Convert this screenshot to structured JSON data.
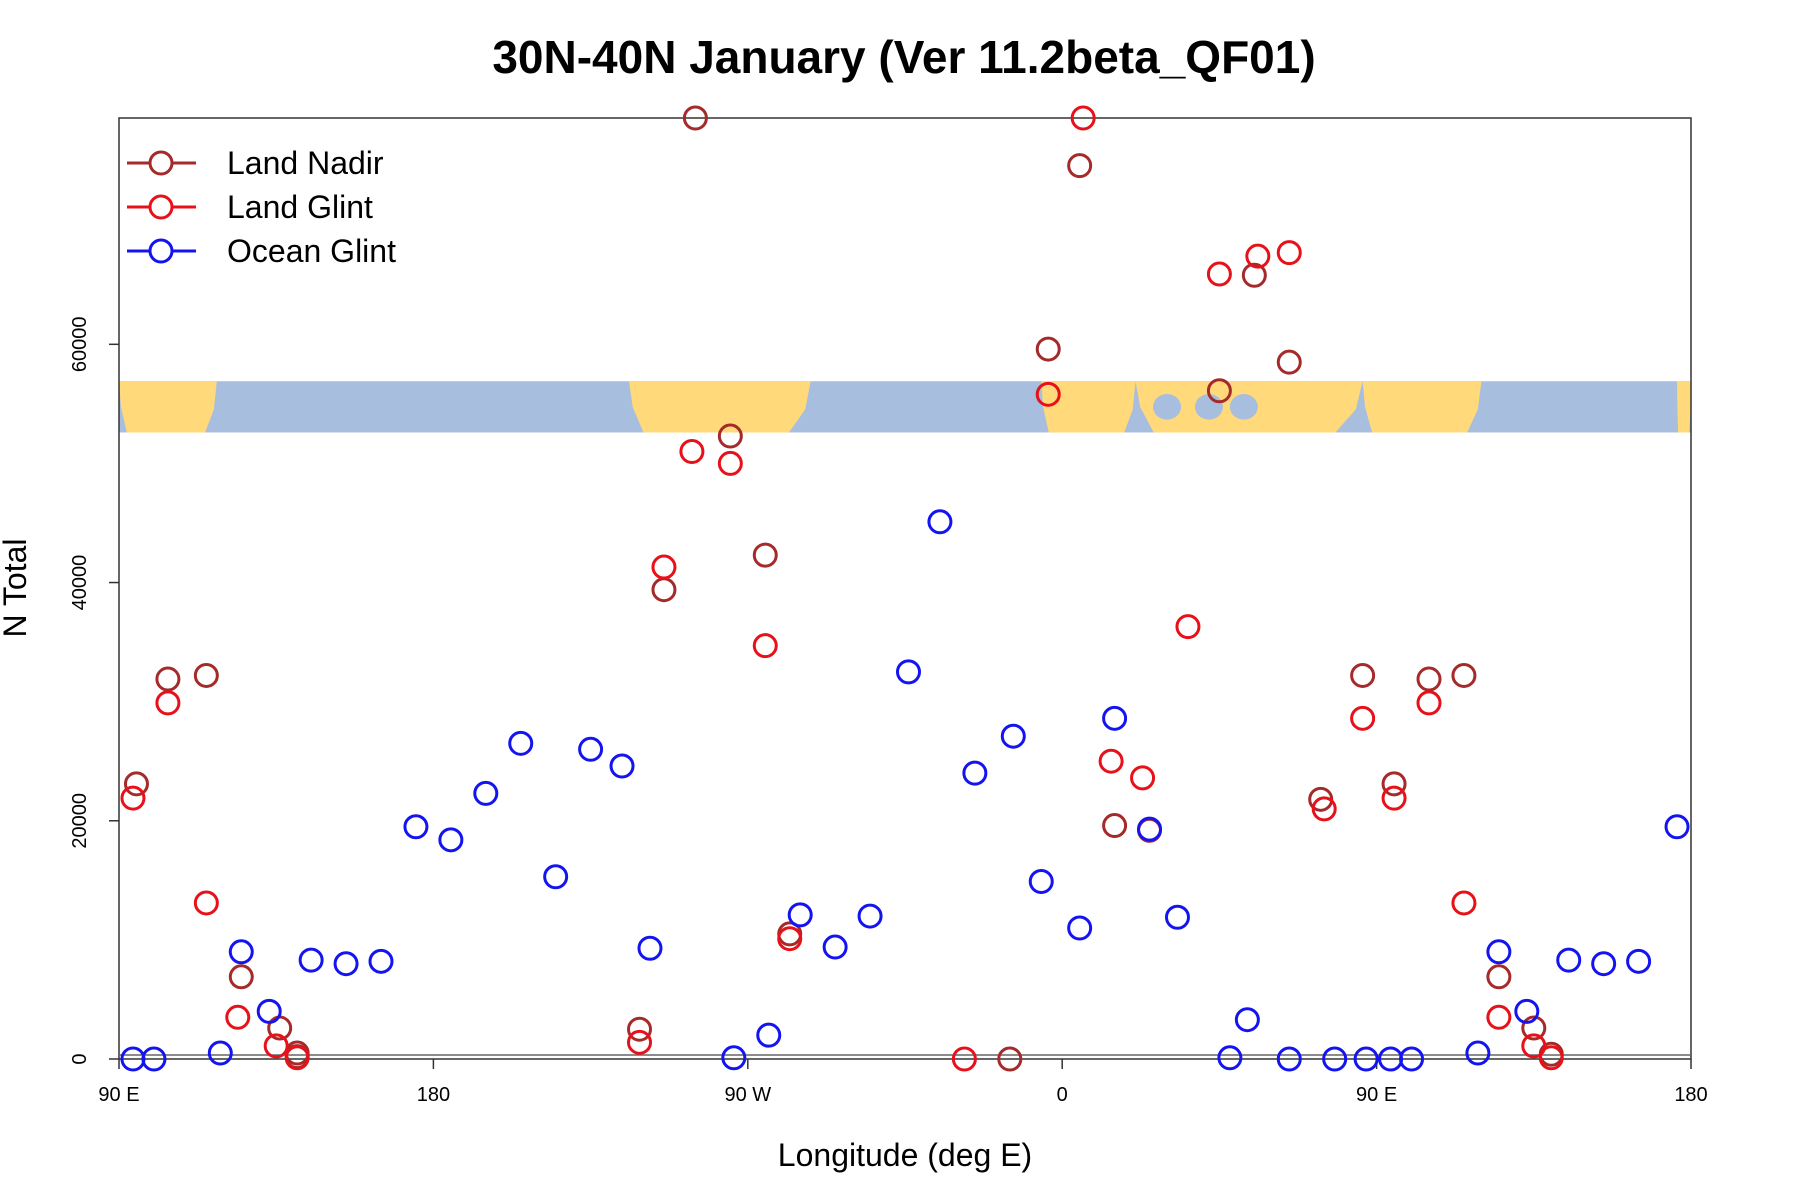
{
  "chart_data": {
    "type": "scatter",
    "title": "30N-40N January (Ver 11.2beta_QF01)",
    "xlabel": "Longitude (deg E)",
    "ylabel": "N Total",
    "x_axis_note": "x is degrees east from 90 E across the wrapped longitude range (0 = 90 E, 450 = 180 on the second wrap)",
    "xlim": [
      0,
      450
    ],
    "ylim": [
      0,
      79000
    ],
    "x_ticks": [
      {
        "pos": 0,
        "label": "90 E"
      },
      {
        "pos": 90,
        "label": "180"
      },
      {
        "pos": 180,
        "label": "90 W"
      },
      {
        "pos": 270,
        "label": "0"
      },
      {
        "pos": 360,
        "label": "90 E"
      },
      {
        "pos": 450,
        "label": "180"
      }
    ],
    "y_ticks": [
      {
        "value": 0,
        "label": "0"
      },
      {
        "value": 20000,
        "label": "20000"
      },
      {
        "value": 40000,
        "label": "40000"
      },
      {
        "value": 60000,
        "label": "60000"
      }
    ],
    "map_strip": {
      "y_range": [
        52600,
        56900
      ],
      "land_color": "#FFD97A",
      "ocean_color": "#A7BEDF"
    },
    "legend_position": "top-left",
    "series": [
      {
        "name": "Land Nadir",
        "color": "#A52A2A",
        "points": [
          [
            5,
            23100
          ],
          [
            14,
            31900
          ],
          [
            25,
            32200
          ],
          [
            35,
            6900
          ],
          [
            46,
            2600
          ],
          [
            51,
            500
          ],
          [
            51,
            200
          ],
          [
            149,
            2500
          ],
          [
            156,
            39400
          ],
          [
            165,
            79000
          ],
          [
            175,
            52300
          ],
          [
            185,
            42300
          ],
          [
            192,
            10500
          ],
          [
            255,
            0
          ],
          [
            266,
            59600
          ],
          [
            275,
            75000
          ],
          [
            285,
            19600
          ],
          [
            295,
            19200
          ],
          [
            315,
            56100
          ],
          [
            325,
            65800
          ],
          [
            335,
            58500
          ],
          [
            344,
            21800
          ],
          [
            356,
            32200
          ],
          [
            365,
            23100
          ],
          [
            375,
            31900
          ],
          [
            385,
            32200
          ],
          [
            395,
            6900
          ],
          [
            405,
            2600
          ],
          [
            410,
            400
          ]
        ]
      },
      {
        "name": "Land Glint",
        "color": "#E8111A",
        "points": [
          [
            4,
            21900
          ],
          [
            14,
            29900
          ],
          [
            25,
            13100
          ],
          [
            34,
            3500
          ],
          [
            45,
            1100
          ],
          [
            51,
            100
          ],
          [
            149,
            1400
          ],
          [
            156,
            41300
          ],
          [
            164,
            51000
          ],
          [
            175,
            50000
          ],
          [
            185,
            34700
          ],
          [
            192,
            10100
          ],
          [
            242,
            0
          ],
          [
            266,
            55800
          ],
          [
            276,
            79000
          ],
          [
            284,
            25000
          ],
          [
            293,
            23600
          ],
          [
            306,
            36300
          ],
          [
            315,
            65900
          ],
          [
            326,
            67400
          ],
          [
            335,
            67700
          ],
          [
            345,
            21000
          ],
          [
            356,
            28600
          ],
          [
            365,
            21900
          ],
          [
            375,
            29900
          ],
          [
            385,
            13100
          ],
          [
            395,
            3500
          ],
          [
            405,
            1100
          ],
          [
            410,
            100
          ]
        ]
      },
      {
        "name": "Ocean Glint",
        "color": "#1414F0",
        "points": [
          [
            4,
            0
          ],
          [
            10,
            0
          ],
          [
            29,
            500
          ],
          [
            35,
            9000
          ],
          [
            43,
            4000
          ],
          [
            55,
            8300
          ],
          [
            65,
            8000
          ],
          [
            75,
            8200
          ],
          [
            85,
            19500
          ],
          [
            95,
            18400
          ],
          [
            105,
            22300
          ],
          [
            115,
            26500
          ],
          [
            125,
            15300
          ],
          [
            135,
            26000
          ],
          [
            144,
            24600
          ],
          [
            152,
            9300
          ],
          [
            176,
            100
          ],
          [
            186,
            2000
          ],
          [
            195,
            12100
          ],
          [
            205,
            9400
          ],
          [
            215,
            12000
          ],
          [
            226,
            32500
          ],
          [
            235,
            45100
          ],
          [
            245,
            24000
          ],
          [
            256,
            27100
          ],
          [
            264,
            14900
          ],
          [
            275,
            11000
          ],
          [
            285,
            28600
          ],
          [
            295,
            19300
          ],
          [
            303,
            11900
          ],
          [
            318,
            100
          ],
          [
            323,
            3300
          ],
          [
            335,
            0
          ],
          [
            348,
            0
          ],
          [
            357,
            0
          ],
          [
            364,
            0
          ],
          [
            370,
            0
          ],
          [
            389,
            500
          ],
          [
            395,
            9000
          ],
          [
            403,
            4000
          ],
          [
            415,
            8300
          ],
          [
            425,
            8000
          ],
          [
            435,
            8200
          ],
          [
            446,
            19500
          ]
        ]
      }
    ]
  }
}
